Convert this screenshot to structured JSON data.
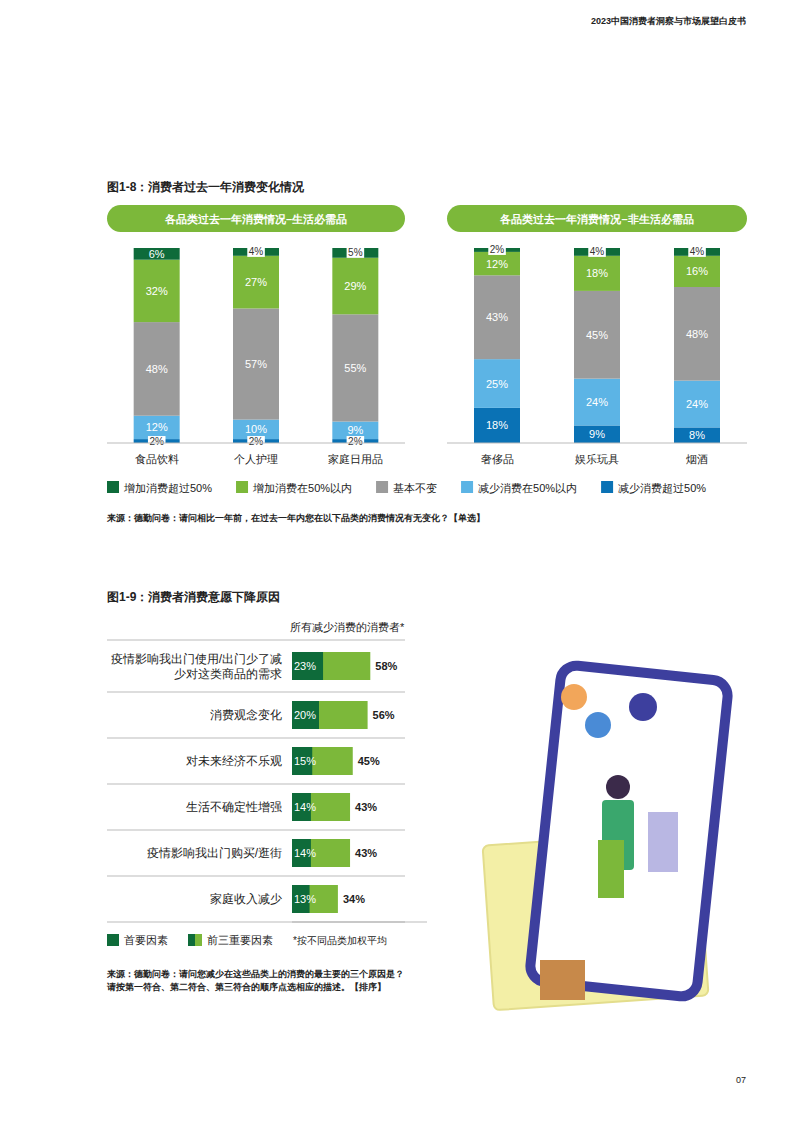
{
  "page": {
    "header": "2023中国消费者洞察与市场展望白皮书",
    "page_number": "07"
  },
  "chart_data": [
    {
      "type": "bar",
      "stacked": true,
      "title": "图1-8：消费者过去一年消费变化情况",
      "subtitle": "各品类过去一年消费情况–生活必需品",
      "categories": [
        "食品饮料",
        "个人护理",
        "家庭日用品"
      ],
      "ylim": [
        0,
        100
      ],
      "tick_labels": "x",
      "data_labels": true,
      "legend": "bottom",
      "series": [
        {
          "name": "增加消费超过50%",
          "color": "#0e6b3a",
          "values": [
            6,
            4,
            5
          ],
          "value_labels": [
            "6%",
            "4%",
            "5%"
          ]
        },
        {
          "name": "增加消费在50%以内",
          "color": "#7cb83a",
          "values": [
            32,
            27,
            29
          ],
          "value_labels": [
            "32%",
            "27%",
            "29%"
          ]
        },
        {
          "name": "基本不变",
          "color": "#9b9b9b",
          "values": [
            48,
            57,
            55
          ],
          "value_labels": [
            "48%",
            "57%",
            "55%"
          ]
        },
        {
          "name": "减少消费在50%以内",
          "color": "#5cb4e5",
          "values": [
            12,
            10,
            9
          ],
          "value_labels": [
            "12%",
            "10%",
            "9%"
          ]
        },
        {
          "name": "减少消费超过50%",
          "color": "#0a72b5",
          "values": [
            2,
            2,
            2
          ],
          "value_labels": [
            "2%",
            "2%",
            "2%"
          ]
        }
      ],
      "annotations": [
        "来源：德勤问卷：请问相比一年前，在过去一年内您在以下品类的消费情况有无变化？【单选】"
      ]
    },
    {
      "type": "bar",
      "stacked": true,
      "subtitle": "各品类过去一年消费情况–非生活必需品",
      "categories": [
        "奢侈品",
        "娱乐玩具",
        "烟酒"
      ],
      "ylim": [
        0,
        100
      ],
      "tick_labels": "x",
      "data_labels": true,
      "series": [
        {
          "color": "#0e6b3a",
          "values": [
            2,
            4,
            4
          ],
          "value_labels": [
            "2%",
            "4%",
            "4%"
          ]
        },
        {
          "color": "#7cb83a",
          "values": [
            12,
            18,
            16
          ],
          "value_labels": [
            "12%",
            "18%",
            "16%"
          ]
        },
        {
          "color": "#9b9b9b",
          "values": [
            43,
            45,
            48
          ],
          "value_labels": [
            "43%",
            "45%",
            "48%"
          ]
        },
        {
          "color": "#5cb4e5",
          "values": [
            25,
            24,
            24
          ],
          "value_labels": [
            "25%",
            "24%",
            "24%"
          ]
        },
        {
          "color": "#0a72b5",
          "values": [
            18,
            9,
            8
          ],
          "value_labels": [
            "18%",
            "9%",
            "8%"
          ]
        }
      ]
    },
    {
      "type": "bar",
      "orientation": "horizontal",
      "title": "图1-9：消费者消费意愿下降原因",
      "subtitle": "所有减少消费的消费者*",
      "categories": [
        "疫情影响我出门使用/出门少了减少对这类商品的需求",
        "消费观念变化",
        "对未来经济不乐观",
        "生活不确定性增强",
        "疫情影响我出门购买/逛街",
        "家庭收入减少"
      ],
      "xlim": [
        0,
        100
      ],
      "tick_labels": false,
      "data_labels": true,
      "legend": "bottom",
      "series": [
        {
          "name": "首要因素",
          "color": "#0e6b3a",
          "values": [
            23,
            20,
            15,
            14,
            14,
            13
          ],
          "value_labels": [
            "23%",
            "20%",
            "15%",
            "14%",
            "14%",
            "13%"
          ]
        },
        {
          "name": "前三重要因素",
          "color": "#7cb83a",
          "values": [
            58,
            56,
            45,
            43,
            43,
            34
          ],
          "value_labels": [
            "58%",
            "56%",
            "45%",
            "43%",
            "43%",
            "34%"
          ]
        }
      ],
      "annotations": [
        "*按不同品类加权平均",
        "来源：德勤问卷：请问您减少在这些品类上的消费的最主要的三个原因是？请按第一符合、第二符合、第三符合的顺序点选相应的描述。【排序】"
      ]
    }
  ]
}
